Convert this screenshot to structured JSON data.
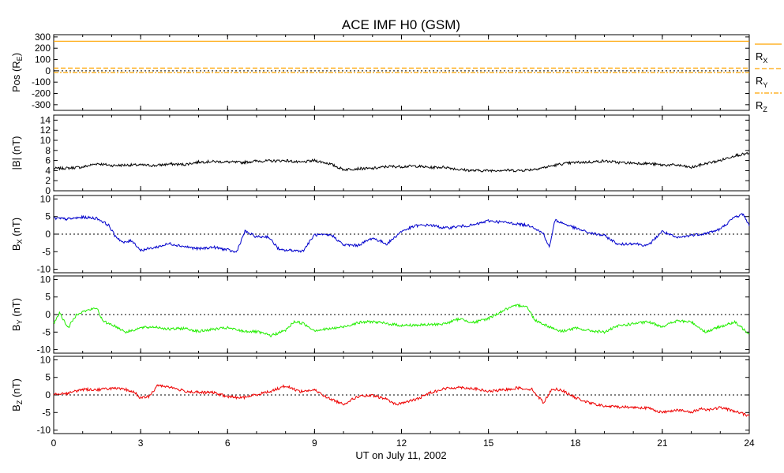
{
  "chart_data": {
    "type": "line",
    "title": "ACE IMF H0 (GSM)",
    "xlabel": "UT on July 11, 2002",
    "xlim": [
      0,
      24
    ],
    "x_ticks": [
      "0",
      "3",
      "6",
      "9",
      "12",
      "15",
      "18",
      "21",
      "24"
    ],
    "panels": [
      {
        "ylabel_main": "Pos (R",
        "ylabel_sub": "E",
        "ylabel_end": ")",
        "ylim": [
          -350,
          320
        ],
        "y_ticks": [
          "300",
          "200",
          "100",
          "0",
          "-100",
          "-200",
          "-300"
        ],
        "zero_line": true,
        "series": [
          {
            "name_main": "R",
            "name_sub": "X",
            "color": "#ffa500",
            "dash": "none",
            "x": [
              0,
              24
            ],
            "values": [
              262,
              262
            ]
          },
          {
            "name_main": "R",
            "name_sub": "Y",
            "color": "#ffa500",
            "dash": "6,3",
            "x": [
              0,
              24
            ],
            "values": [
              24,
              24
            ]
          },
          {
            "name_main": "R",
            "name_sub": "Z",
            "color": "#ffa500",
            "dash": "6,2,2,2",
            "x": [
              0,
              24
            ],
            "values": [
              -14,
              -14
            ]
          }
        ]
      },
      {
        "ylabel_main": "|B| (nT)",
        "ylabel_sub": "",
        "ylabel_end": "",
        "ylim": [
          0,
          15
        ],
        "y_ticks": [
          "14",
          "12",
          "10",
          "8",
          "6",
          "4",
          "2",
          "0"
        ],
        "zero_line": false,
        "series": [
          {
            "color": "#000000",
            "x": [
              0,
              0.5,
              1.0,
              1.5,
              2.0,
              2.5,
              3.0,
              3.5,
              4.0,
              4.5,
              5.0,
              5.5,
              6.0,
              6.5,
              7.0,
              7.5,
              8.0,
              8.5,
              9.0,
              9.5,
              10.0,
              10.5,
              11.0,
              11.5,
              12.0,
              12.5,
              13.0,
              13.5,
              14.0,
              14.5,
              15.0,
              15.5,
              16.0,
              16.5,
              17.0,
              17.5,
              18.0,
              18.5,
              19.0,
              19.5,
              20.0,
              20.5,
              21.0,
              21.5,
              22.0,
              22.5,
              23.0,
              23.5,
              24.0
            ],
            "values": [
              4.4,
              4.5,
              4.7,
              5.4,
              5.0,
              5.1,
              5.1,
              5.0,
              5.3,
              5.2,
              5.7,
              5.8,
              5.7,
              5.6,
              5.9,
              5.9,
              6.0,
              5.6,
              6.0,
              5.4,
              4.2,
              4.4,
              4.4,
              4.8,
              4.8,
              4.9,
              4.6,
              4.7,
              4.2,
              4.0,
              4.0,
              4.1,
              4.0,
              4.2,
              4.7,
              5.3,
              5.6,
              5.7,
              5.9,
              5.6,
              5.5,
              5.4,
              5.1,
              5.1,
              4.6,
              5.4,
              6.0,
              7.0,
              7.4
            ]
          }
        ]
      },
      {
        "ylabel_main": "B",
        "ylabel_sub": "X",
        "ylabel_end": " (nT)",
        "ylim": [
          -11,
          11
        ],
        "y_ticks": [
          "10",
          "5",
          "0",
          "-5",
          "-10"
        ],
        "zero_line": true,
        "series": [
          {
            "color": "#0000cc",
            "x": [
              0,
              0.5,
              1.0,
              1.5,
              1.9,
              2.1,
              2.4,
              2.7,
              3.0,
              3.5,
              4.0,
              4.5,
              5.0,
              5.5,
              6.0,
              6.3,
              6.6,
              7.0,
              7.4,
              7.8,
              8.2,
              8.6,
              9.0,
              9.3,
              9.6,
              10.0,
              10.5,
              11.0,
              11.5,
              12.0,
              12.5,
              13.0,
              13.5,
              14.0,
              14.5,
              15.0,
              15.5,
              16.0,
              16.5,
              16.9,
              17.1,
              17.3,
              17.6,
              18.0,
              18.5,
              19.0,
              19.5,
              20.0,
              20.5,
              21.0,
              21.5,
              22.0,
              22.5,
              23.0,
              23.5,
              23.8,
              24.0
            ],
            "values": [
              4.5,
              4.3,
              4.8,
              4.5,
              2.5,
              -0.3,
              -2.5,
              -1.8,
              -4.6,
              -3.8,
              -2.7,
              -3.5,
              -4.2,
              -3.7,
              -4.5,
              -5.2,
              0.8,
              -0.8,
              -0.7,
              -4.6,
              -4.6,
              -4.8,
              -0.2,
              -0.3,
              -0.3,
              -3.1,
              -3.2,
              -1.1,
              -2.8,
              0.8,
              2.4,
              2.6,
              1.7,
              2.2,
              2.6,
              3.8,
              3.4,
              2.9,
              2.3,
              0.1,
              -3.8,
              4.0,
              3.0,
              1.7,
              0.3,
              -0.4,
              -3.0,
              -2.6,
              -3.3,
              0.8,
              -1.1,
              -0.3,
              0.2,
              1.4,
              4.9,
              5.7,
              2.3
            ]
          }
        ]
      },
      {
        "ylabel_main": "B",
        "ylabel_sub": "Y",
        "ylabel_end": " (nT)",
        "ylim": [
          -11,
          11
        ],
        "y_ticks": [
          "10",
          "5",
          "0",
          "-5",
          "-10"
        ],
        "zero_line": true,
        "series": [
          {
            "color": "#22ee00",
            "x": [
              0,
              0.2,
              0.5,
              0.8,
              1.0,
              1.3,
              1.5,
              1.7,
              2.0,
              2.5,
              3.0,
              3.5,
              4.0,
              4.5,
              5.0,
              5.5,
              6.0,
              6.5,
              7.0,
              7.5,
              8.0,
              8.3,
              8.6,
              9.0,
              9.5,
              10.0,
              10.5,
              11.0,
              11.5,
              12.0,
              12.5,
              13.0,
              13.5,
              14.0,
              14.5,
              15.0,
              15.3,
              15.6,
              16.0,
              16.3,
              16.6,
              17.0,
              17.5,
              18.0,
              18.5,
              19.0,
              19.5,
              20.0,
              20.5,
              21.0,
              21.5,
              22.0,
              22.5,
              23.0,
              23.5,
              24.0
            ],
            "values": [
              -2.5,
              0.5,
              -3.8,
              0.2,
              0.8,
              1.5,
              1.8,
              -2.0,
              -2.8,
              -5.0,
              -3.8,
              -3.5,
              -4.2,
              -3.9,
              -4.8,
              -4.2,
              -3.8,
              -4.7,
              -4.9,
              -6.0,
              -4.5,
              -2.0,
              -2.5,
              -4.5,
              -4.1,
              -3.5,
              -2.3,
              -2.0,
              -2.6,
              -3.1,
              -3.0,
              -2.9,
              -2.6,
              -1.2,
              -2.3,
              -1.1,
              0.2,
              1.5,
              2.6,
              2.5,
              -1.5,
              -3.1,
              -4.8,
              -3.9,
              -4.6,
              -5.0,
              -3.2,
              -2.6,
              -2.1,
              -3.4,
              -1.8,
              -2.1,
              -5.0,
              -3.4,
              -2.2,
              -5.4
            ]
          }
        ]
      },
      {
        "ylabel_main": "B",
        "ylabel_sub": "Z",
        "ylabel_end": " (nT)",
        "ylim": [
          -11,
          11
        ],
        "y_ticks": [
          "10",
          "5",
          "0",
          "-5",
          "-10"
        ],
        "zero_line": true,
        "series": [
          {
            "color": "#ee0000",
            "x": [
              0,
              0.5,
              1.0,
              1.5,
              2.0,
              2.5,
              2.8,
              3.0,
              3.3,
              3.6,
              4.0,
              4.5,
              5.0,
              5.5,
              6.0,
              6.5,
              7.0,
              7.5,
              8.0,
              8.5,
              9.0,
              9.5,
              10.0,
              10.5,
              11.0,
              11.5,
              11.8,
              12.0,
              12.5,
              13.0,
              13.5,
              14.0,
              14.5,
              15.0,
              15.5,
              16.0,
              16.5,
              16.9,
              17.2,
              17.5,
              18.0,
              18.5,
              19.0,
              19.5,
              20.0,
              20.5,
              21.0,
              21.5,
              22.0,
              22.3,
              22.6,
              23.0,
              23.5,
              24.0
            ],
            "values": [
              0.3,
              0.5,
              1.6,
              1.5,
              1.9,
              1.5,
              0.7,
              -0.9,
              -0.4,
              2.8,
              2.3,
              1.1,
              0.7,
              0.7,
              -0.5,
              -0.8,
              0.1,
              1.1,
              2.6,
              1.0,
              1.4,
              -1.0,
              -2.6,
              -0.4,
              -0.2,
              -1.2,
              -2.7,
              -2.3,
              -1.3,
              0.7,
              1.8,
              2.2,
              1.8,
              1.0,
              1.4,
              2.0,
              1.6,
              -2.2,
              1.7,
              1.5,
              -0.8,
              -2.3,
              -3.2,
              -3.4,
              -3.5,
              -3.7,
              -5.0,
              -4.2,
              -5.0,
              -3.9,
              -4.2,
              -3.6,
              -4.6,
              -6.0
            ]
          }
        ]
      }
    ]
  }
}
